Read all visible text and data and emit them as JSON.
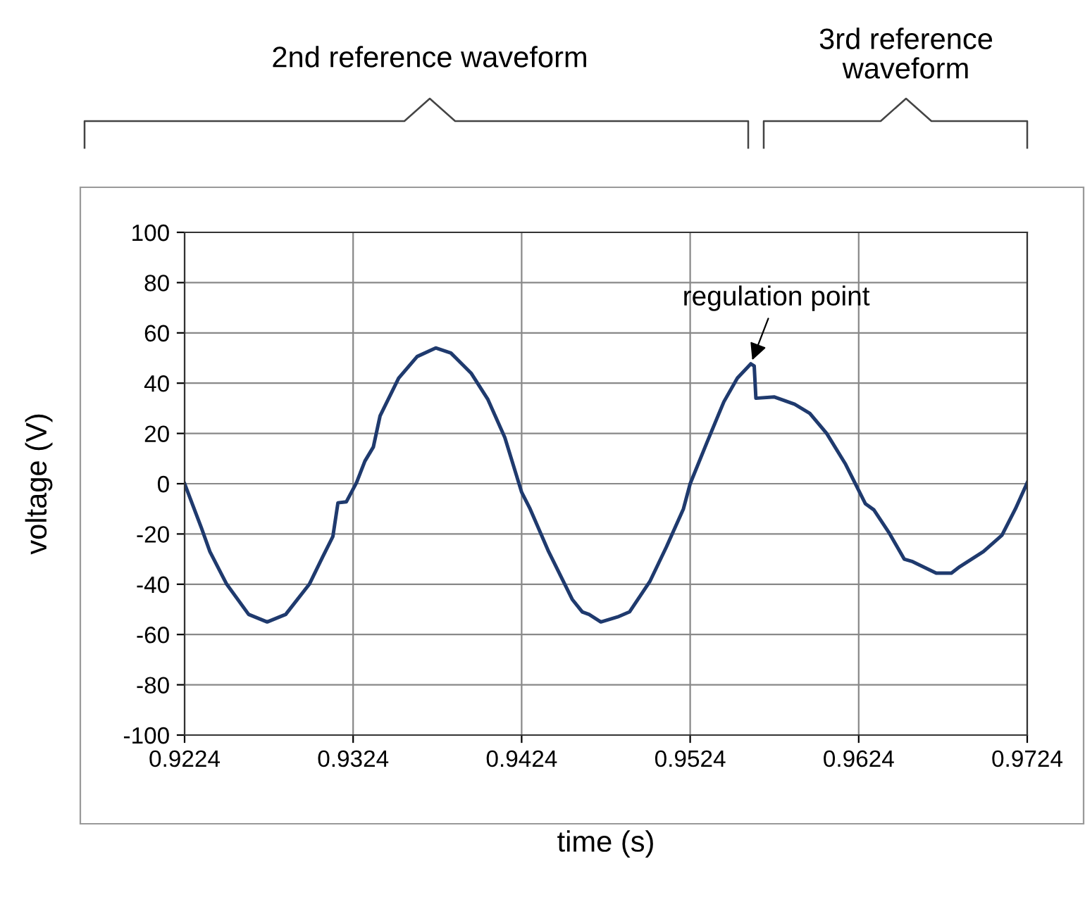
{
  "chart_data": {
    "type": "line",
    "xlabel": "time (s)",
    "ylabel": "voltage (V)",
    "xlim": [
      0.9224,
      0.9724
    ],
    "xticks": [
      0.9224,
      0.9324,
      0.9424,
      0.9524,
      0.9624,
      0.9724
    ],
    "ylim": [
      -100,
      100
    ],
    "yticks": [
      -100,
      -80,
      -60,
      -40,
      -20,
      0,
      20,
      40,
      60,
      80,
      100
    ],
    "grid": true,
    "legend": false,
    "marker": "none",
    "line_style": "solid",
    "series": [
      {
        "color": "#1f3a6e",
        "x": [
          0.9224,
          0.9234,
          0.9239,
          0.9249,
          0.9262,
          0.9273,
          0.9284,
          0.9298,
          0.9306,
          0.9312,
          0.9315,
          0.932,
          0.9326,
          0.9331,
          0.9336,
          0.934,
          0.9351,
          0.9362,
          0.9373,
          0.9382,
          0.9394,
          0.9404,
          0.9414,
          0.9424,
          0.9429,
          0.944,
          0.9454,
          0.946,
          0.9464,
          0.9471,
          0.9481,
          0.9488,
          0.95,
          0.951,
          0.952,
          0.9524,
          0.9534,
          0.9544,
          0.9552,
          0.956,
          0.9562,
          0.9563,
          0.9574,
          0.9586,
          0.9595,
          0.9605,
          0.9616,
          0.9628,
          0.9633,
          0.9642,
          0.9651,
          0.9656,
          0.967,
          0.9679,
          0.9684,
          0.9698,
          0.9709,
          0.9717,
          0.9724
        ],
        "values": [
          0,
          -17.6,
          -27,
          -40,
          -52,
          -55,
          -52,
          -40,
          -29,
          -21,
          -7.6,
          -7.2,
          0.4,
          9,
          14.6,
          27,
          42,
          50.6,
          54,
          52,
          44,
          33.5,
          18.4,
          -3.4,
          -10,
          -27,
          -46,
          -51,
          -52,
          -55,
          -53,
          -51,
          -39,
          -25,
          -10,
          0,
          16.5,
          32.6,
          42,
          47.7,
          46.8,
          34,
          34.5,
          31.6,
          28,
          20,
          8,
          -8,
          -10.4,
          -19.5,
          -30,
          -31,
          -35.6,
          -35.6,
          -33,
          -27,
          -20.5,
          -10,
          0.4
        ]
      }
    ],
    "annotations": [
      "2nd reference waveform",
      "3rd reference\nwaveform",
      {
        "text": "regulation point",
        "x": 0.956,
        "y": 47.7
      }
    ]
  }
}
